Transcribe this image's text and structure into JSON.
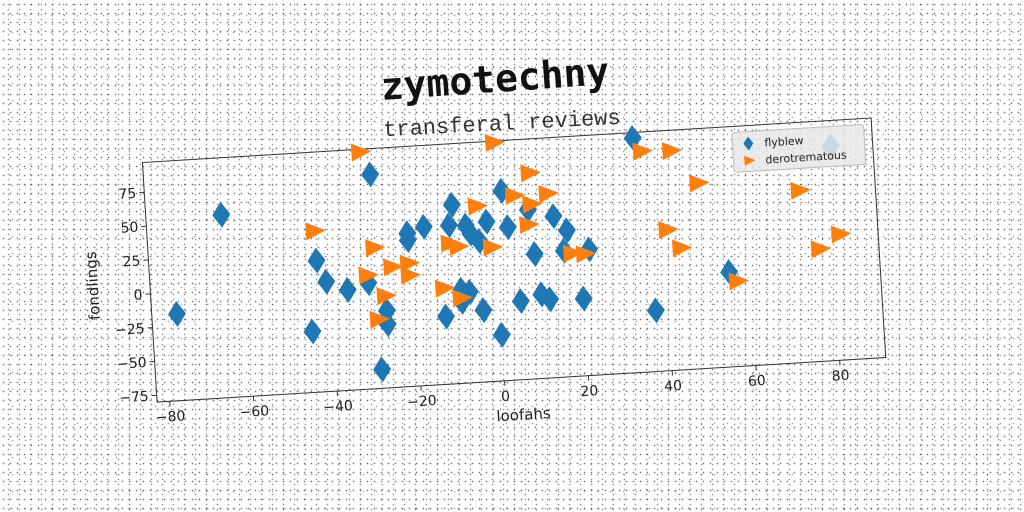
{
  "chart_data": {
    "type": "scatter",
    "title": "zymotechny",
    "subtitle": "transferal reviews",
    "xlabel": "loofahs",
    "ylabel": "fondlings",
    "xlim": [
      -83,
      91
    ],
    "ylim": [
      -80,
      97
    ],
    "xticks": [
      -80,
      -60,
      -40,
      -20,
      0,
      20,
      40,
      60,
      80
    ],
    "yticks": [
      -75,
      -50,
      -25,
      0,
      25,
      50,
      75
    ],
    "legend_position": "top-right",
    "grid": false,
    "series": [
      {
        "name": "flyblew",
        "marker": "diamond",
        "color": "#1f77b4",
        "points": [
          [
            -77,
            -16
          ],
          [
            -65,
            55
          ],
          [
            -45,
            -35
          ],
          [
            -43,
            17
          ],
          [
            -41,
            1
          ],
          [
            -36,
            -6
          ],
          [
            -31,
            -2
          ],
          [
            -29,
            78
          ],
          [
            -29,
            -66
          ],
          [
            -27,
            -33
          ],
          [
            -27,
            -23
          ],
          [
            -21,
            28
          ],
          [
            -21,
            33
          ],
          [
            -17,
            37
          ],
          [
            -13,
            -30
          ],
          [
            -11,
            37
          ],
          [
            -10,
            52
          ],
          [
            -9,
            -11
          ],
          [
            -9,
            -20
          ],
          [
            -7,
            36
          ],
          [
            -6,
            30
          ],
          [
            -4,
            24
          ],
          [
            -2,
            38
          ],
          [
            -4,
            -27
          ],
          [
            0,
            -46
          ],
          [
            2,
            60
          ],
          [
            3,
            33
          ],
          [
            5,
            -22
          ],
          [
            8,
            45
          ],
          [
            9,
            12
          ],
          [
            10,
            -18
          ],
          [
            12,
            -22
          ],
          [
            14,
            39
          ],
          [
            16,
            13
          ],
          [
            17,
            28
          ],
          [
            20,
            -23
          ],
          [
            22,
            13
          ],
          [
            34,
            93
          ],
          [
            37,
            -35
          ],
          [
            55,
            -10
          ],
          [
            81,
            78
          ],
          [
            -7,
            -13
          ]
        ]
      },
      {
        "name": "derotrematous",
        "marker": "triangle-right",
        "color": "#ff7f0e",
        "points": [
          [
            -31,
            95
          ],
          [
            1,
            96
          ],
          [
            -43,
            39
          ],
          [
            -29,
            24
          ],
          [
            -27,
            -12
          ],
          [
            -29,
            -29
          ],
          [
            -25,
            9
          ],
          [
            -21,
            11
          ],
          [
            -21,
            2
          ],
          [
            -31,
            4
          ],
          [
            -13,
            -9
          ],
          [
            -9,
            -17
          ],
          [
            -11,
            24
          ],
          [
            -9,
            21
          ],
          [
            -4,
            50
          ],
          [
            -1,
            19
          ],
          [
            5,
            56
          ],
          [
            8,
            34
          ],
          [
            9,
            72
          ],
          [
            9,
            49
          ],
          [
            13,
            56
          ],
          [
            18,
            11
          ],
          [
            21,
            10
          ],
          [
            36,
            83
          ],
          [
            41,
            24
          ],
          [
            43,
            82
          ],
          [
            44,
            10
          ],
          [
            49,
            57
          ],
          [
            57,
            -17
          ],
          [
            73,
            47
          ],
          [
            77,
            3
          ],
          [
            82,
            13
          ]
        ]
      }
    ]
  }
}
